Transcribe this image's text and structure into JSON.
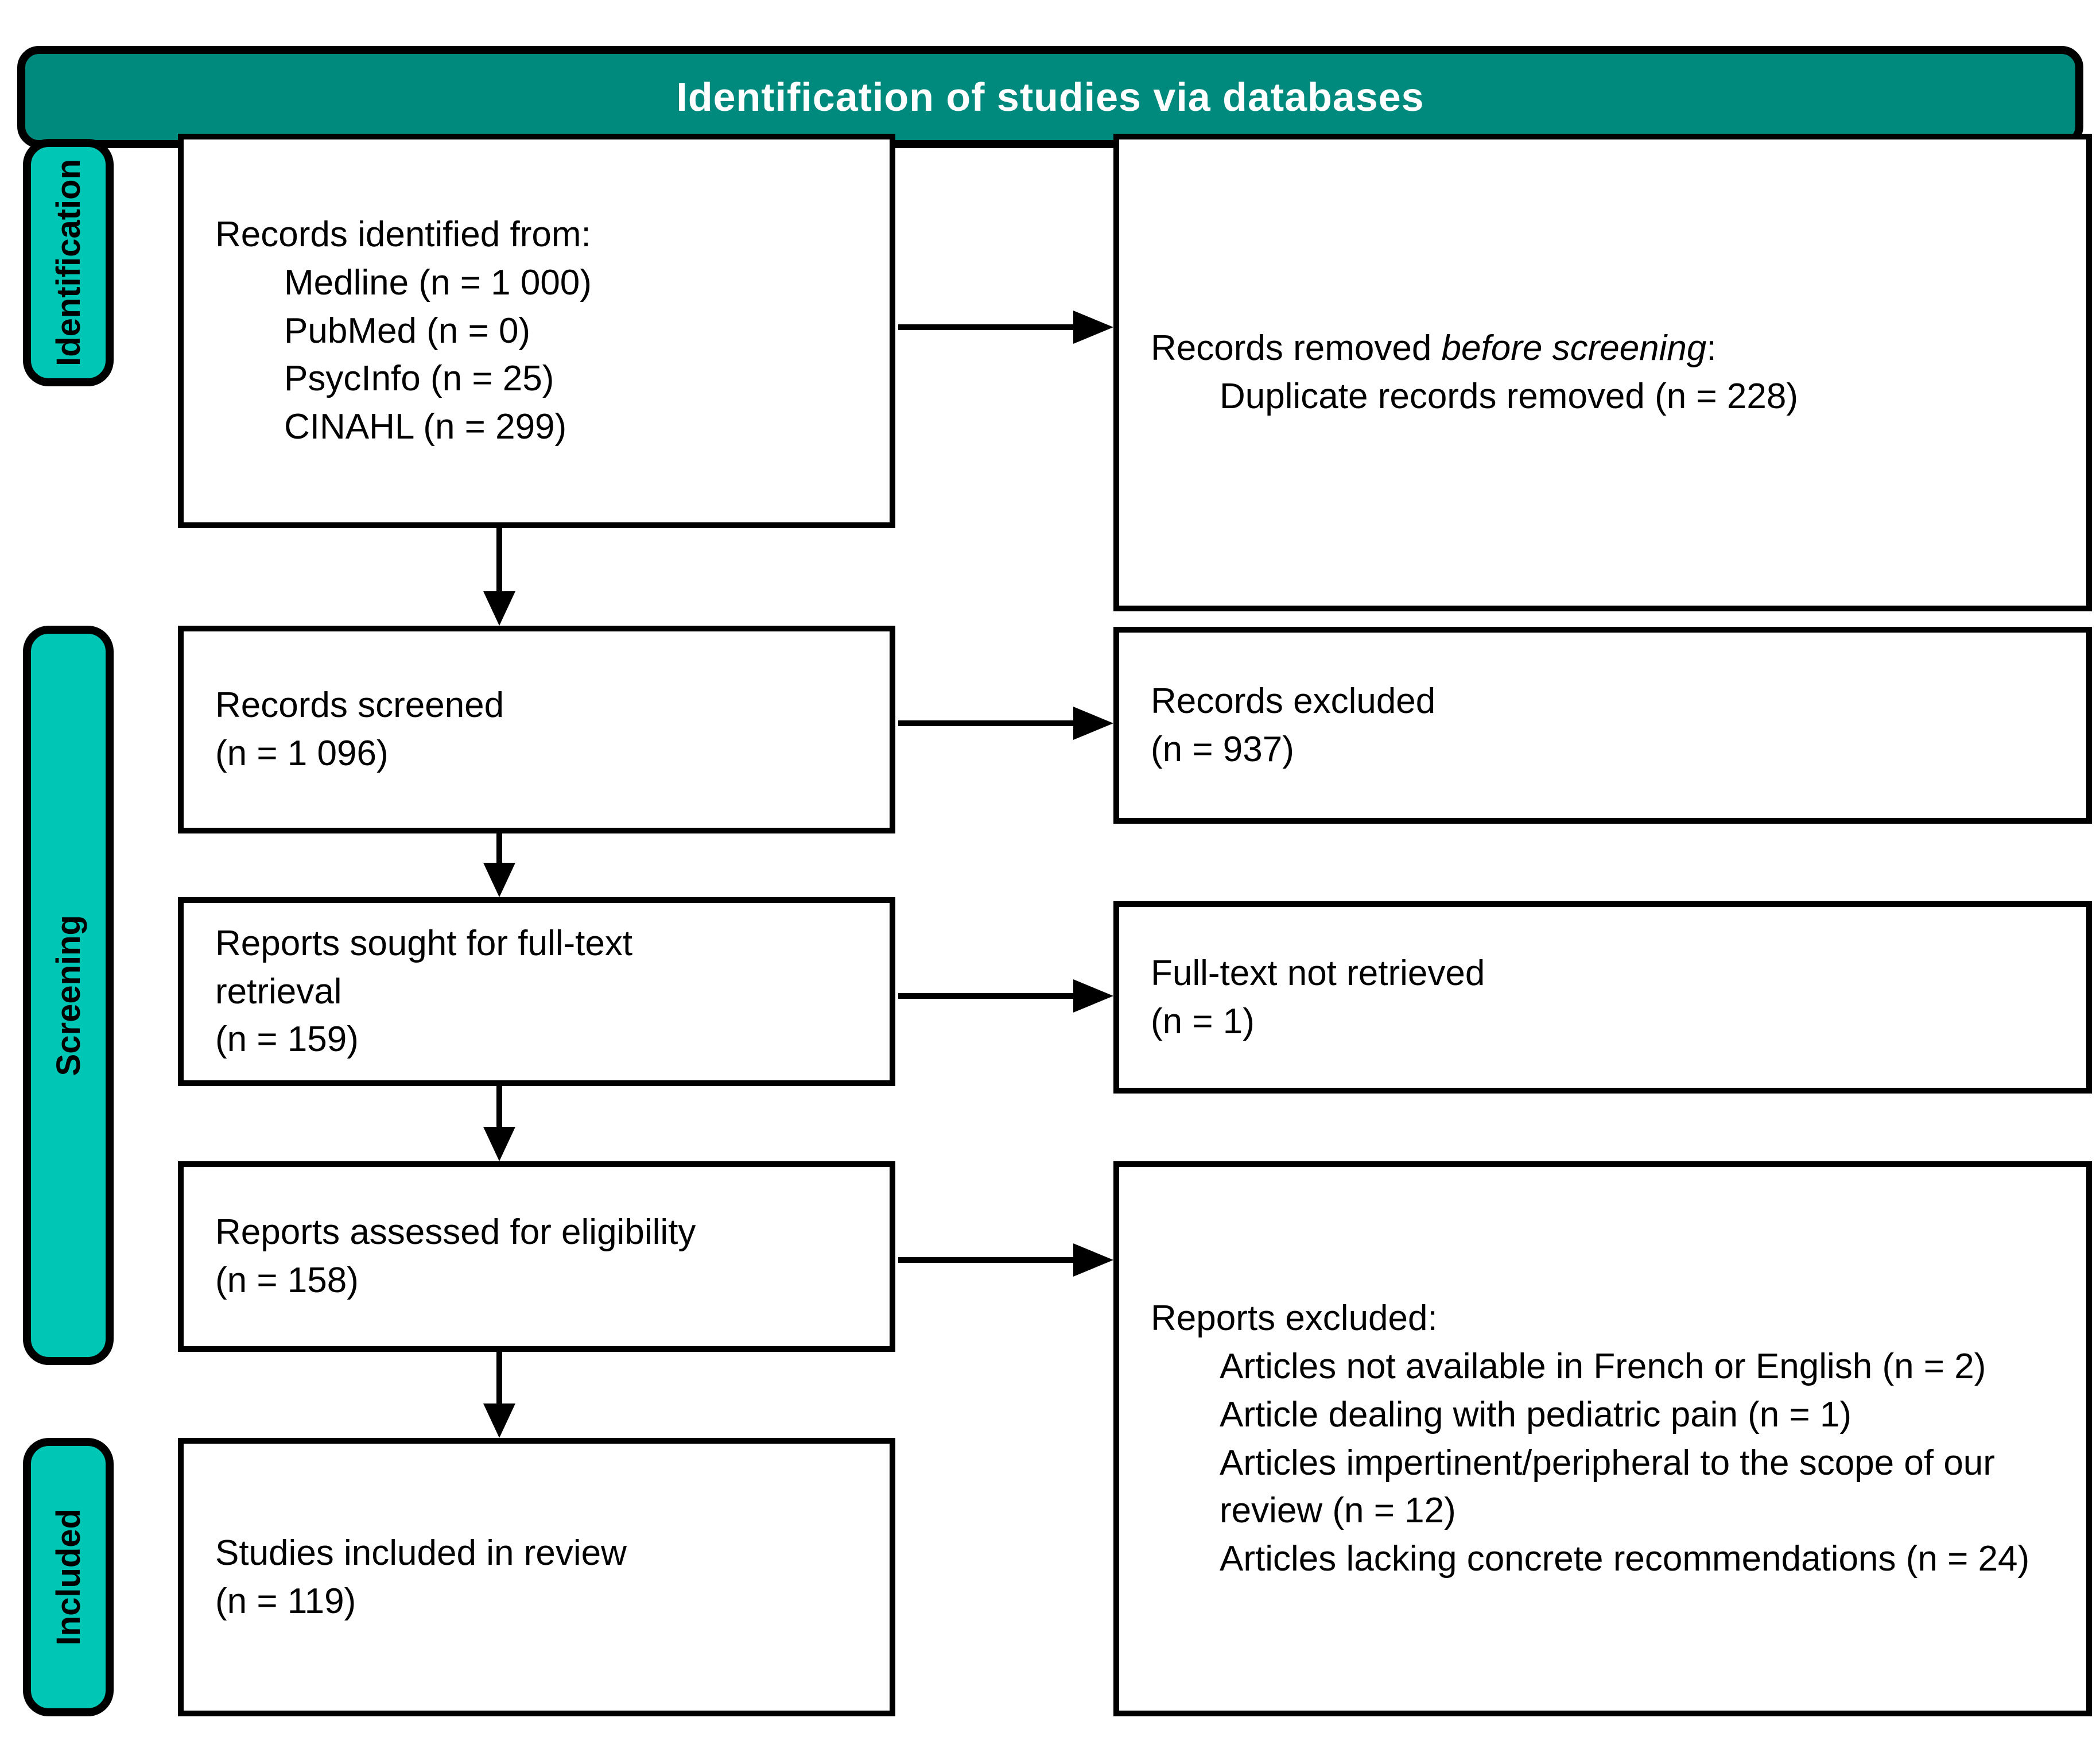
{
  "header": {
    "title": "Identification of studies via databases"
  },
  "colors": {
    "header_fill": "#008A7E",
    "stage_fill": "#00C7B5",
    "box_border": "#000000",
    "box_fill": "#FFFFFF",
    "header_text": "#FFFFFF"
  },
  "stages": {
    "identification": "Identification",
    "screening": "Screening",
    "included": "Included"
  },
  "left_boxes": {
    "records_identified": {
      "title": "Records identified from:",
      "items": [
        "Medline (n = 1 000)",
        "PubMed (n = 0)",
        "PsycInfo (n = 25)",
        "CINAHL (n = 299)"
      ]
    },
    "records_screened": {
      "line1": "Records screened",
      "line2": "(n = 1 096)"
    },
    "reports_sought": {
      "line1": "Reports sought for full-text",
      "line2": "retrieval",
      "line3": "(n = 159)"
    },
    "reports_assessed": {
      "line1": "Reports assessed for eligibility",
      "line2": "(n = 158)"
    },
    "studies_included": {
      "line1": "Studies included in review",
      "line2": "(n = 119)"
    }
  },
  "right_boxes": {
    "records_removed": {
      "title_prefix": "Records removed ",
      "title_italic": "before screening",
      "title_suffix": ":",
      "items": [
        "Duplicate records removed (n = 228)"
      ]
    },
    "records_excluded": {
      "line1": "Records excluded",
      "line2": "(n = 937)"
    },
    "fulltext_not_retrieved": {
      "line1": "Full-text not retrieved",
      "line2": "(n = 1)"
    },
    "reports_excluded": {
      "title": "Reports excluded:",
      "items": [
        "Articles not available in French or English (n = 2)",
        "Article dealing with pediatric pain (n = 1)",
        "Articles impertinent/peripheral to the scope of our review (n = 12)",
        "Articles lacking concrete recommendations (n = 24)"
      ]
    }
  }
}
